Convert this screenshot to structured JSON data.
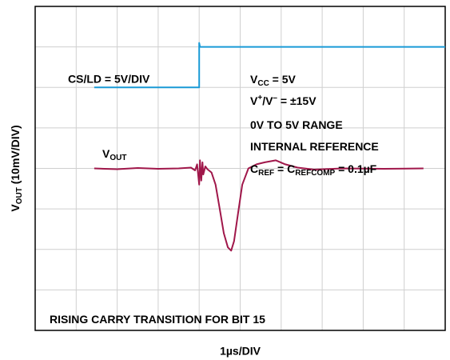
{
  "chart_data": {
    "type": "line",
    "xlabel": "1µs/DIV",
    "ylabel": [
      {
        "t": "V"
      },
      {
        "t": "OUT",
        "sub": true
      },
      {
        "t": " (10mV/DIV)"
      }
    ],
    "xlim": [
      0,
      10
    ],
    "ylim": [
      0,
      8
    ],
    "xticks": [
      0,
      1,
      2,
      3,
      4,
      5,
      6,
      7,
      8,
      9,
      10
    ],
    "yticks": [
      0,
      1,
      2,
      3,
      4,
      5,
      6,
      7,
      8
    ],
    "grid": true,
    "series": [
      {
        "name": "CS/LD = 5V/DIV",
        "color": "#1a9ad6",
        "x": [
          1.44,
          4.0,
          4.0,
          4.02,
          10
        ],
        "values": [
          6,
          6,
          7.1,
          7,
          7
        ]
      },
      {
        "name": [
          {
            "t": "V"
          },
          {
            "t": "OUT",
            "sub": true
          }
        ],
        "color": "#a0174a",
        "x": [
          1.44,
          2.0,
          2.5,
          3.0,
          3.5,
          3.8,
          3.9,
          3.95,
          4.0,
          4.02,
          4.05,
          4.08,
          4.1,
          4.15,
          4.2,
          4.3,
          4.4,
          4.5,
          4.6,
          4.7,
          4.78,
          4.85,
          4.95,
          5.05,
          5.2,
          5.4,
          5.6,
          5.87,
          6.1,
          6.4,
          6.8,
          7.5,
          8.5,
          9.47
        ],
        "values": [
          4.0,
          3.98,
          4.01,
          3.99,
          4.0,
          4.02,
          3.95,
          4.1,
          3.6,
          4.2,
          3.7,
          4.15,
          3.85,
          4.05,
          3.98,
          3.9,
          3.6,
          3.0,
          2.4,
          2.05,
          1.97,
          2.2,
          2.9,
          3.6,
          4.0,
          4.1,
          4.15,
          4.2,
          4.1,
          4.02,
          3.97,
          4.0,
          3.99,
          4.0
        ]
      }
    ],
    "annotations": [
      [
        {
          "t": "V"
        },
        {
          "t": "CC",
          "sub": true
        },
        {
          "t": " = 5V"
        }
      ],
      [
        {
          "t": "V"
        },
        {
          "t": "+",
          "sup": true
        },
        {
          "t": "/V"
        },
        {
          "t": "–",
          "sup": true
        },
        {
          "t": " = ±15V"
        }
      ],
      [
        {
          "t": "0V TO 5V RANGE"
        }
      ],
      [
        {
          "t": "INTERNAL REFERENCE"
        }
      ],
      [
        {
          "t": "C"
        },
        {
          "t": "REF",
          "sub": true
        },
        {
          "t": " = C"
        },
        {
          "t": "REFCOMP",
          "sub": true
        },
        {
          "t": " = 0.1µF"
        }
      ],
      [
        {
          "t": "RISING CARRY TRANSITION FOR BIT 15"
        }
      ]
    ]
  }
}
